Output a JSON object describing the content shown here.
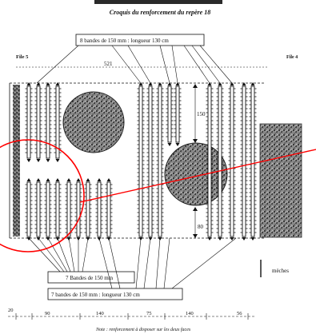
{
  "caption": "Croquis du renforcement du repère 18",
  "file_left": "File 5",
  "file_right": "File 4",
  "callout_top": "8 bandes de 150 mm : longueur 130 cm",
  "callout_mid": "7 Bandes de 150 mm",
  "callout_bottom": "7 bandes de 150 mm : longueur 130 cm",
  "dim_top": "521",
  "dim_right_150": "150",
  "dim_right_80": "80",
  "legend_label": "mèches",
  "bottom_dims": [
    "20",
    "90",
    "140",
    "75",
    "140",
    "56"
  ],
  "note": "Note : renforcement à disposer sur les deux faces",
  "colors": {
    "circle": "#ff0000",
    "texture": "#555555",
    "line": "#111111"
  }
}
